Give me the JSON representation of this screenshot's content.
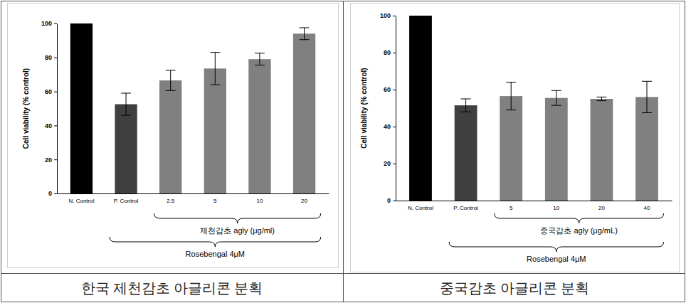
{
  "chart_data": [
    {
      "type": "bar",
      "title": "한국 제천감초 아글리콘 분획",
      "y_label": "Cell viability (% control)",
      "categories": [
        "N. Control",
        "P. Control",
        "2.5",
        "5",
        "10",
        "20"
      ],
      "values": [
        100,
        52.5,
        66.5,
        73.5,
        79,
        94
      ],
      "errors": [
        null,
        6.5,
        6,
        9.5,
        3.5,
        3.5
      ],
      "colors": [
        "#000000",
        "#404040",
        "#808080",
        "#808080",
        "#808080",
        "#808080"
      ],
      "ylim": [
        0,
        100
      ],
      "yticks": [
        0,
        20,
        40,
        60,
        80,
        100
      ],
      "annotations": [
        {
          "text": "제천감초 agly (μg/ml)",
          "span": [
            2,
            5
          ]
        },
        {
          "text": "Rosebengal 4μM",
          "span": [
            1,
            5
          ]
        }
      ]
    },
    {
      "type": "bar",
      "title": "중국감초 아글리콘 분획",
      "y_label": "Cell viability (% control)",
      "categories": [
        "N. Control",
        "P. Control",
        "5",
        "10",
        "20",
        "40"
      ],
      "values": [
        100,
        51.5,
        56.5,
        55.5,
        55,
        56
      ],
      "errors": [
        null,
        3.5,
        7.5,
        4,
        1,
        8.5
      ],
      "colors": [
        "#000000",
        "#404040",
        "#808080",
        "#808080",
        "#808080",
        "#808080"
      ],
      "ylim": [
        0,
        100
      ],
      "yticks": [
        0,
        20,
        40,
        60,
        80,
        100
      ],
      "annotations": [
        {
          "text": "중국감초 agly (μg/mL)",
          "span": [
            2,
            5
          ]
        },
        {
          "text": "Rosebengal 4μM",
          "span": [
            1,
            5
          ]
        }
      ]
    }
  ]
}
